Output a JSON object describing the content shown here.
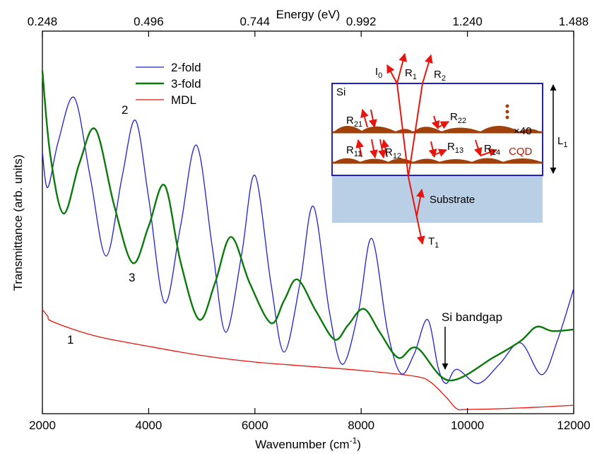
{
  "chart_data": {
    "type": "line",
    "x_label": {
      "text": "Wavenumber (cm",
      "sup": "-1",
      "end": ")"
    },
    "y_label": "Transmittance (arb. units)",
    "x2_label": "Energy (eV)",
    "xlim": [
      2000,
      12000
    ],
    "xticks": [
      2000,
      4000,
      6000,
      8000,
      10000,
      12000
    ],
    "x2lim": [
      0.248,
      1.488
    ],
    "x2ticks": [
      0.248,
      0.496,
      0.744,
      0.992,
      {
        "value": 1.24,
        "label": "1.240"
      },
      1.488
    ],
    "ylim": [
      0,
      100
    ],
    "series": [
      {
        "name": "2-fold",
        "color": "#1f1fd0",
        "x": [
          2000,
          2100,
          2300,
          2600,
          2900,
          3200,
          3500,
          3750,
          4000,
          4300,
          4600,
          4900,
          5200,
          5450,
          5750,
          6000,
          6300,
          6550,
          6850,
          7100,
          7400,
          7650,
          7950,
          8200,
          8500,
          8750,
          9000,
          9250,
          9450,
          9600,
          9800,
          10200,
          10600,
          11000,
          11400,
          11700,
          12000
        ],
        "values": [
          68.4,
          59.1,
          71.2,
          82.6,
          61.9,
          41.2,
          61.9,
          76.7,
          56.4,
          29.0,
          49.0,
          70.2,
          43.3,
          21.3,
          41.6,
          62.3,
          34.2,
          16.1,
          34.2,
          54.2,
          26.8,
          12.9,
          26.8,
          45.8,
          21.3,
          10.5,
          15.7,
          24.6,
          12.0,
          7.9,
          11.6,
          7.9,
          12.9,
          18.5,
          10.2,
          19.4,
          32.7
        ]
      },
      {
        "name": "3-fold",
        "color": "#0a7a0a",
        "x": [
          2000,
          2150,
          2400,
          2700,
          3000,
          3350,
          3700,
          4000,
          4300,
          4600,
          4950,
          5250,
          5550,
          5900,
          6300,
          6550,
          6800,
          7150,
          7500,
          7750,
          8050,
          8350,
          8700,
          9050,
          9650,
          10500,
          11000,
          11300,
          11600,
          12000
        ],
        "values": [
          89.6,
          67.5,
          52.3,
          65.6,
          74.3,
          54.5,
          39.4,
          49.0,
          59.7,
          39.7,
          24.6,
          34.2,
          46.2,
          34.2,
          23.7,
          29.6,
          35.1,
          26.8,
          19.4,
          23.1,
          27.4,
          21.3,
          14.6,
          17.2,
          8.7,
          14.8,
          19.0,
          22.7,
          21.6,
          22.0
        ]
      },
      {
        "name": "MDL",
        "color": "#e8150e",
        "x": [
          2000,
          2100,
          2200,
          3000,
          4000,
          5000,
          6000,
          7000,
          8000,
          9000,
          9300,
          9600,
          9800,
          10000,
          11000,
          12000
        ],
        "values": [
          27.2,
          25.5,
          24.0,
          20.3,
          17.6,
          15.2,
          13.5,
          12.4,
          11.3,
          9.8,
          8.3,
          4.3,
          1.3,
          1.1,
          1.5,
          2.2
        ]
      }
    ],
    "annotations": [
      "1",
      "2",
      "3",
      "Si bandgap"
    ],
    "inset": {
      "I0": {
        "text": "I",
        "sub": "0"
      },
      "R1": {
        "text": "R",
        "sub": "1"
      },
      "R2": {
        "text": "R",
        "sub": "2"
      },
      "si": "Si",
      "R21": {
        "text": "R",
        "sub": "21"
      },
      "R22": {
        "text": "R",
        "sub": "22"
      },
      "times": "×40",
      "R11": {
        "text": "R",
        "sub": "11"
      },
      "R12": {
        "text": "R",
        "sub": "12"
      },
      "R13": {
        "text": "R",
        "sub": "13"
      },
      "R14": {
        "text": "R",
        "sub": "14"
      },
      "cqd": "CQD",
      "L1": {
        "text": "L",
        "sub": "1"
      },
      "substrate": "Substrate",
      "T1": {
        "text": "T",
        "sub": "1"
      }
    }
  }
}
